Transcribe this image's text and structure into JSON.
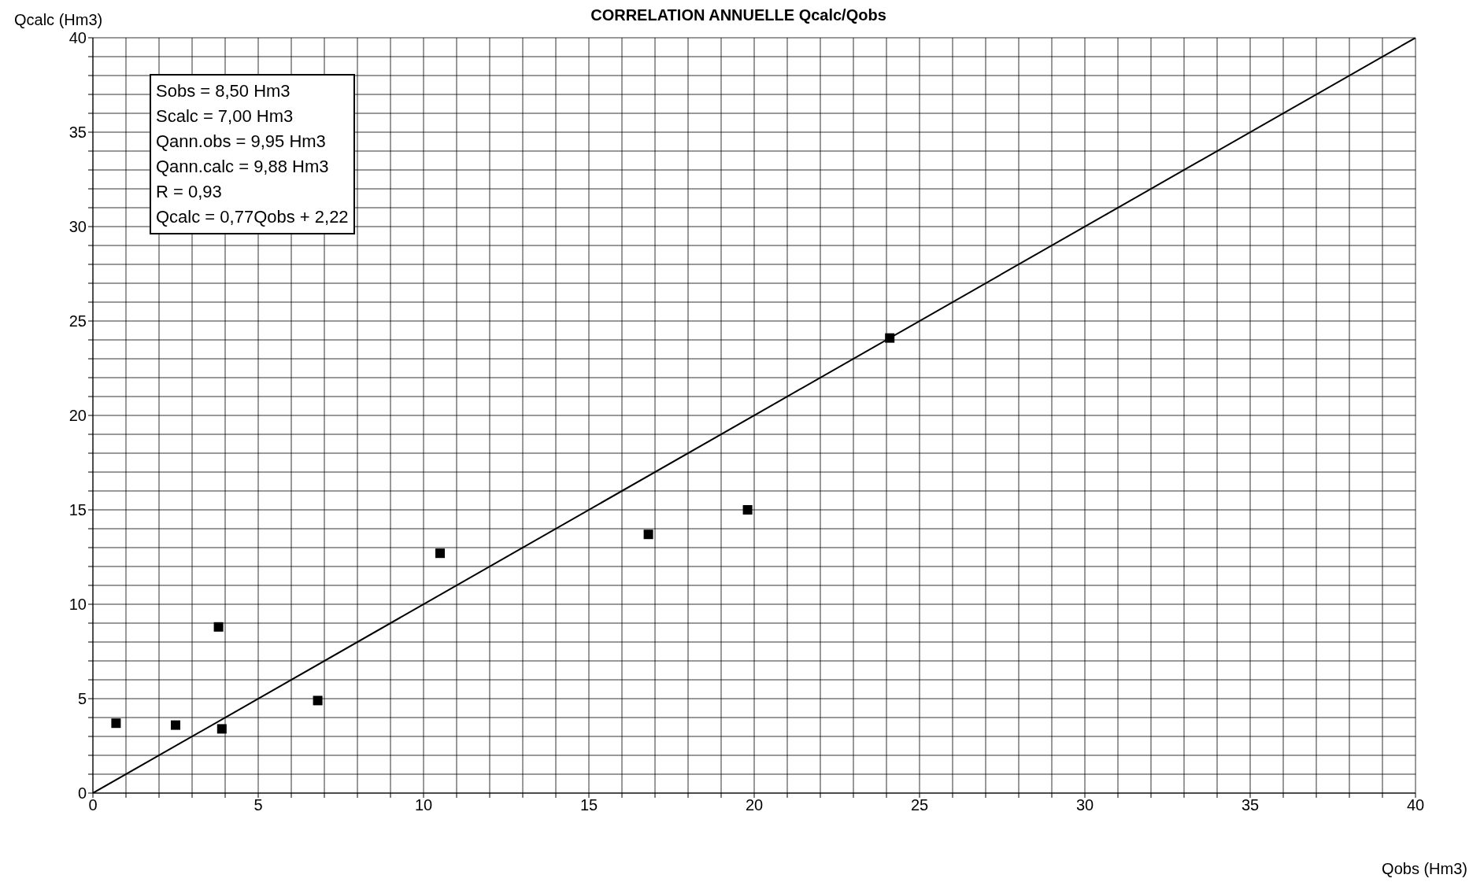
{
  "chart_data": {
    "type": "scatter",
    "title": "CORRELATION ANNUELLE  Qcalc/Qobs",
    "xlabel": "Qobs (Hm3)",
    "ylabel": "Qcalc (Hm3)",
    "annotations": [
      "Sobs  = 8,50 Hm3",
      "Scalc = 7,00 Hm3",
      "Qann.obs = 9,95 Hm3",
      "Qann.calc = 9,88 Hm3",
      "R   = 0,93",
      "Qcalc = 0,77Qobs + 2,22"
    ],
    "series": [
      {
        "color": "#000000",
        "marker": "square",
        "x": [
          0.7,
          2.5,
          3.8,
          3.9,
          6.8,
          10.5,
          16.8,
          19.8,
          24.1
        ],
        "values": [
          3.7,
          3.6,
          8.8,
          3.4,
          4.9,
          12.7,
          13.7,
          15.0,
          24.1
        ]
      },
      {
        "type": "line",
        "color": "#000000",
        "marker": "none",
        "line_style": "solid",
        "x": [
          0,
          40
        ],
        "values": [
          0,
          40
        ]
      }
    ],
    "xlim": [
      0,
      40
    ],
    "ylim": [
      0,
      40
    ],
    "xticks": [
      0,
      {
        "value": 1,
        "label": null
      },
      {
        "value": 2,
        "label": null
      },
      {
        "value": 3,
        "label": null
      },
      {
        "value": 4,
        "label": null
      },
      5,
      {
        "value": 6,
        "label": null
      },
      {
        "value": 7,
        "label": null
      },
      {
        "value": 8,
        "label": null
      },
      {
        "value": 9,
        "label": null
      },
      10,
      {
        "value": 11,
        "label": null
      },
      {
        "value": 12,
        "label": null
      },
      {
        "value": 13,
        "label": null
      },
      {
        "value": 14,
        "label": null
      },
      15,
      {
        "value": 16,
        "label": null
      },
      {
        "value": 17,
        "label": null
      },
      {
        "value": 18,
        "label": null
      },
      {
        "value": 19,
        "label": null
      },
      20,
      {
        "value": 21,
        "label": null
      },
      {
        "value": 22,
        "label": null
      },
      {
        "value": 23,
        "label": null
      },
      {
        "value": 24,
        "label": null
      },
      25,
      {
        "value": 26,
        "label": null
      },
      {
        "value": 27,
        "label": null
      },
      {
        "value": 28,
        "label": null
      },
      {
        "value": 29,
        "label": null
      },
      30,
      {
        "value": 31,
        "label": null
      },
      {
        "value": 32,
        "label": null
      },
      {
        "value": 33,
        "label": null
      },
      {
        "value": 34,
        "label": null
      },
      35,
      {
        "value": 36,
        "label": null
      },
      {
        "value": 37,
        "label": null
      },
      {
        "value": 38,
        "label": null
      },
      {
        "value": 39,
        "label": null
      },
      40
    ],
    "yticks": [
      0,
      {
        "value": 1,
        "label": null
      },
      {
        "value": 2,
        "label": null
      },
      {
        "value": 3,
        "label": null
      },
      {
        "value": 4,
        "label": null
      },
      5,
      {
        "value": 6,
        "label": null
      },
      {
        "value": 7,
        "label": null
      },
      {
        "value": 8,
        "label": null
      },
      {
        "value": 9,
        "label": null
      },
      10,
      {
        "value": 11,
        "label": null
      },
      {
        "value": 12,
        "label": null
      },
      {
        "value": 13,
        "label": null
      },
      {
        "value": 14,
        "label": null
      },
      15,
      {
        "value": 16,
        "label": null
      },
      {
        "value": 17,
        "label": null
      },
      {
        "value": 18,
        "label": null
      },
      {
        "value": 19,
        "label": null
      },
      20,
      {
        "value": 21,
        "label": null
      },
      {
        "value": 22,
        "label": null
      },
      {
        "value": 23,
        "label": null
      },
      {
        "value": 24,
        "label": null
      },
      25,
      {
        "value": 26,
        "label": null
      },
      {
        "value": 27,
        "label": null
      },
      {
        "value": 28,
        "label": null
      },
      {
        "value": 29,
        "label": null
      },
      30,
      {
        "value": 31,
        "label": null
      },
      {
        "value": 32,
        "label": null
      },
      {
        "value": 33,
        "label": null
      },
      {
        "value": 34,
        "label": null
      },
      35,
      {
        "value": 36,
        "label": null
      },
      {
        "value": 37,
        "label": null
      },
      {
        "value": 38,
        "label": null
      },
      {
        "value": 39,
        "label": null
      },
      40
    ],
    "grid": true
  }
}
